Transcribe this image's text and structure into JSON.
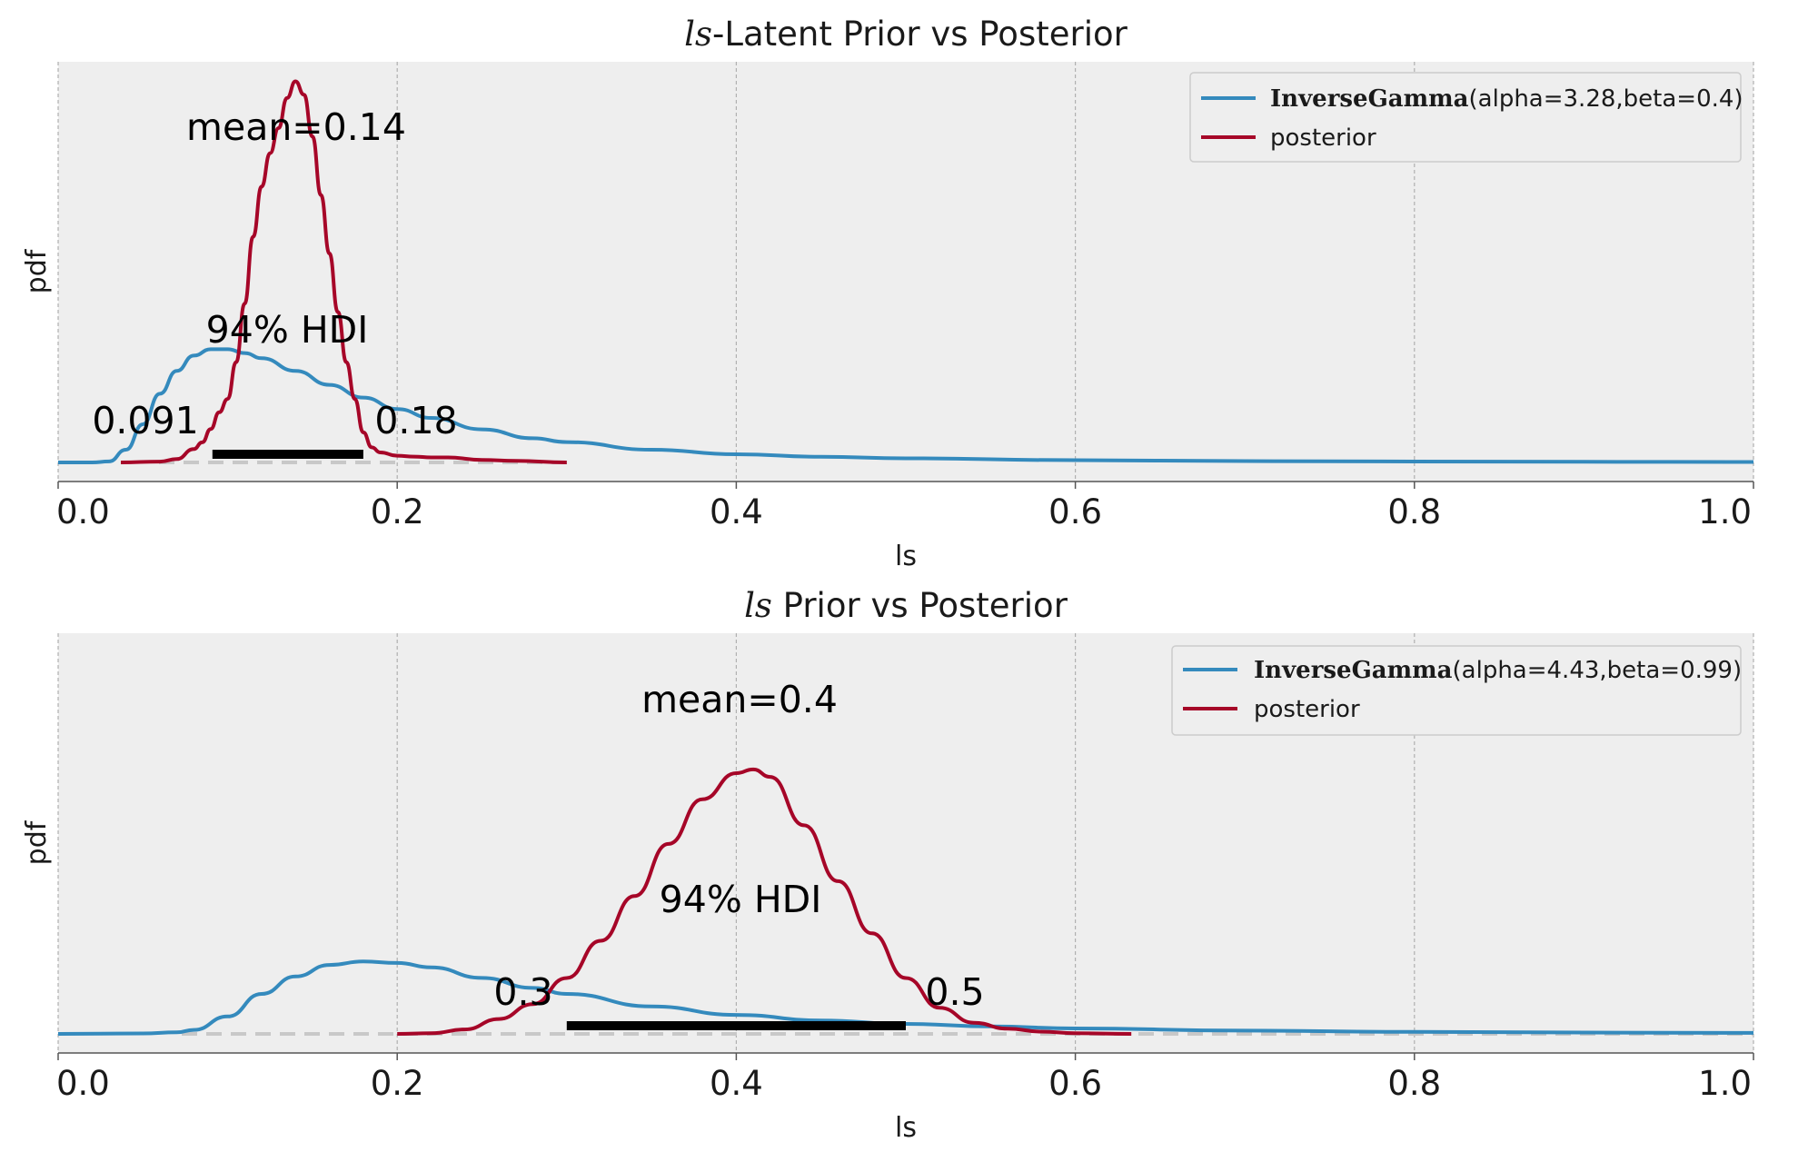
{
  "chart_data": [
    {
      "type": "line",
      "title_var": "ls",
      "title_rest": "-Latent Prior vs Posterior",
      "xlabel": "ls",
      "ylabel": "pdf",
      "xlim": [
        0.0,
        1.0
      ],
      "xticks": [
        "0.0",
        "0.2",
        "0.4",
        "0.6",
        "0.8",
        "1.0"
      ],
      "legend_position": "top-right",
      "series": [
        {
          "name_bold": "InverseGamma",
          "name_rest": "(alpha=3.28,beta=0.4)",
          "color": "#348ABD",
          "x": [
            0.0,
            0.02,
            0.03,
            0.04,
            0.05,
            0.06,
            0.07,
            0.08,
            0.09,
            0.1,
            0.11,
            0.12,
            0.14,
            0.16,
            0.18,
            0.2,
            0.22,
            0.25,
            0.28,
            0.3,
            0.35,
            0.4,
            0.45,
            0.5,
            0.6,
            0.7,
            0.8,
            0.9,
            1.0
          ],
          "y": [
            0.0,
            0.0,
            0.04,
            0.5,
            1.5,
            2.7,
            3.6,
            4.2,
            4.45,
            4.45,
            4.3,
            4.1,
            3.6,
            3.05,
            2.55,
            2.1,
            1.75,
            1.3,
            0.95,
            0.8,
            0.5,
            0.32,
            0.22,
            0.16,
            0.09,
            0.055,
            0.035,
            0.025,
            0.018
          ]
        },
        {
          "name": "posterior",
          "color": "#A60628",
          "x": [
            0.037,
            0.06,
            0.07,
            0.08,
            0.085,
            0.09,
            0.095,
            0.1,
            0.105,
            0.11,
            0.115,
            0.12,
            0.125,
            0.13,
            0.135,
            0.14,
            0.145,
            0.15,
            0.155,
            0.16,
            0.165,
            0.17,
            0.175,
            0.18,
            0.185,
            0.19,
            0.2,
            0.21,
            0.22,
            0.23,
            0.25,
            0.27,
            0.3
          ],
          "y": [
            0.0,
            0.05,
            0.2,
            0.8,
            1.2,
            2.0,
            3.0,
            3.8,
            6.0,
            9.5,
            13.5,
            16.5,
            18.5,
            20.0,
            21.8,
            22.8,
            22.0,
            19.5,
            16.0,
            12.5,
            9.0,
            6.0,
            3.8,
            1.8,
            0.9,
            0.6,
            0.4,
            0.35,
            0.3,
            0.3,
            0.15,
            0.1,
            0.0
          ]
        }
      ],
      "hdi": {
        "low": 0.091,
        "high": 0.18,
        "low_label": "0.091",
        "high_label": "0.18",
        "label": "94% HDI"
      },
      "mean_label": "mean=0.14"
    },
    {
      "type": "line",
      "title_var": "ls",
      "title_rest": " Prior vs Posterior",
      "xlabel": "ls",
      "ylabel": "pdf",
      "xlim": [
        0.0,
        1.0
      ],
      "xticks": [
        "0.0",
        "0.2",
        "0.4",
        "0.6",
        "0.8",
        "1.0"
      ],
      "legend_position": "top-right",
      "series": [
        {
          "name_bold": "InverseGamma",
          "name_rest": "(alpha=4.43,beta=0.99)",
          "color": "#348ABD",
          "x": [
            0.0,
            0.05,
            0.07,
            0.08,
            0.1,
            0.12,
            0.14,
            0.16,
            0.18,
            0.2,
            0.22,
            0.25,
            0.28,
            0.3,
            0.35,
            0.4,
            0.45,
            0.5,
            0.55,
            0.6,
            0.7,
            0.8,
            0.9,
            1.0
          ],
          "y": [
            0.0,
            0.01,
            0.03,
            0.08,
            0.35,
            0.8,
            1.15,
            1.38,
            1.45,
            1.42,
            1.33,
            1.12,
            0.92,
            0.8,
            0.55,
            0.38,
            0.27,
            0.2,
            0.15,
            0.11,
            0.065,
            0.04,
            0.027,
            0.02
          ],
          "x_extent_note": ""
        },
        {
          "name": "posterior",
          "color": "#A60628",
          "x": [
            0.2,
            0.22,
            0.24,
            0.26,
            0.28,
            0.3,
            0.32,
            0.34,
            0.36,
            0.38,
            0.4,
            0.41,
            0.42,
            0.44,
            0.46,
            0.48,
            0.5,
            0.52,
            0.54,
            0.56,
            0.58,
            0.6,
            0.633
          ],
          "y": [
            0.0,
            0.01,
            0.06,
            0.2,
            0.4,
            0.75,
            1.25,
            1.85,
            2.55,
            3.15,
            3.5,
            3.55,
            3.45,
            2.8,
            2.05,
            1.35,
            0.75,
            0.35,
            0.15,
            0.07,
            0.03,
            0.01,
            0.0
          ]
        }
      ],
      "hdi": {
        "low": 0.3,
        "high": 0.5,
        "low_label": "0.3",
        "high_label": "0.5",
        "label": "94% HDI"
      },
      "mean_label": "mean=0.4"
    }
  ]
}
